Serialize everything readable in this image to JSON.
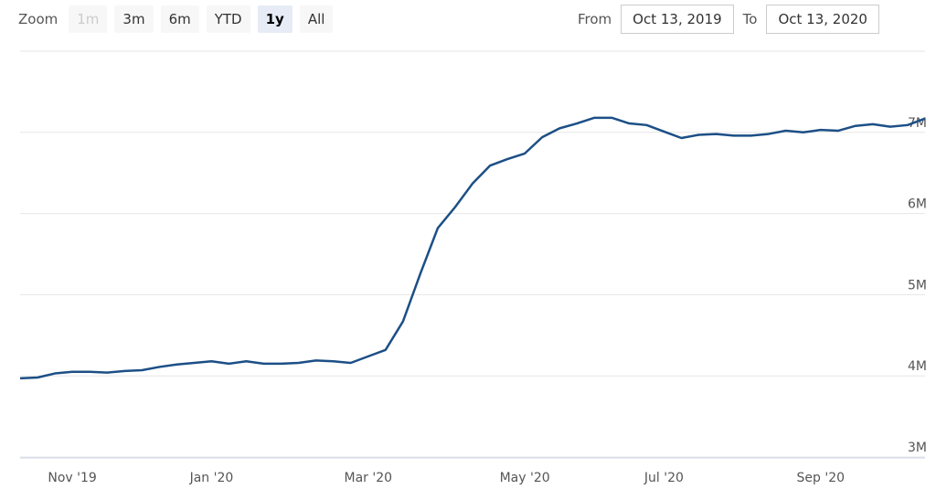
{
  "range_selector": {
    "zoom_label": "Zoom",
    "buttons": [
      "1m",
      "3m",
      "6m",
      "YTD",
      "1y",
      "All"
    ],
    "selected_button": 4,
    "disabled_buttons": [
      0
    ],
    "from_label": "From",
    "from_value": "Oct 13, 2019",
    "to_label": "To",
    "to_value": "Oct 13, 2020"
  },
  "chart_data": {
    "type": "line",
    "color": "#1c4f86",
    "grid": true,
    "categories": [
      null,
      null,
      null,
      "Nov '19",
      null,
      null,
      null,
      null,
      null,
      null,
      null,
      "Jan '20",
      null,
      null,
      null,
      null,
      null,
      null,
      null,
      null,
      "Mar '20",
      null,
      null,
      null,
      null,
      null,
      null,
      null,
      null,
      "May '20",
      null,
      null,
      null,
      null,
      null,
      null,
      null,
      "Jul '20",
      null,
      null,
      null,
      null,
      null,
      null,
      null,
      null,
      "Sep '20",
      null,
      null,
      null,
      null,
      null,
      null
    ],
    "values": [
      3970000,
      3980000,
      4030000,
      4050000,
      4050000,
      4040000,
      4060000,
      4070000,
      4110000,
      4140000,
      4160000,
      4180000,
      4150000,
      4180000,
      4150000,
      4150000,
      4160000,
      4190000,
      4180000,
      4160000,
      4240000,
      4320000,
      4670000,
      5260000,
      5820000,
      6080000,
      6370000,
      6590000,
      6670000,
      6740000,
      6940000,
      7050000,
      7110000,
      7180000,
      7180000,
      7110000,
      7090000,
      7010000,
      6930000,
      6970000,
      6980000,
      6960000,
      6960000,
      6980000,
      7020000,
      7000000,
      7030000,
      7020000,
      7080000,
      7100000,
      7070000,
      7090000,
      7170000
    ],
    "ylim": [
      3000000,
      8000000
    ],
    "yticks": [
      {
        "value": 3000000,
        "label": "3M"
      },
      {
        "value": 4000000,
        "label": "4M"
      },
      {
        "value": 5000000,
        "label": "5M"
      },
      {
        "value": 6000000,
        "label": "6M"
      },
      {
        "value": 7000000,
        "label": "7M"
      }
    ]
  }
}
